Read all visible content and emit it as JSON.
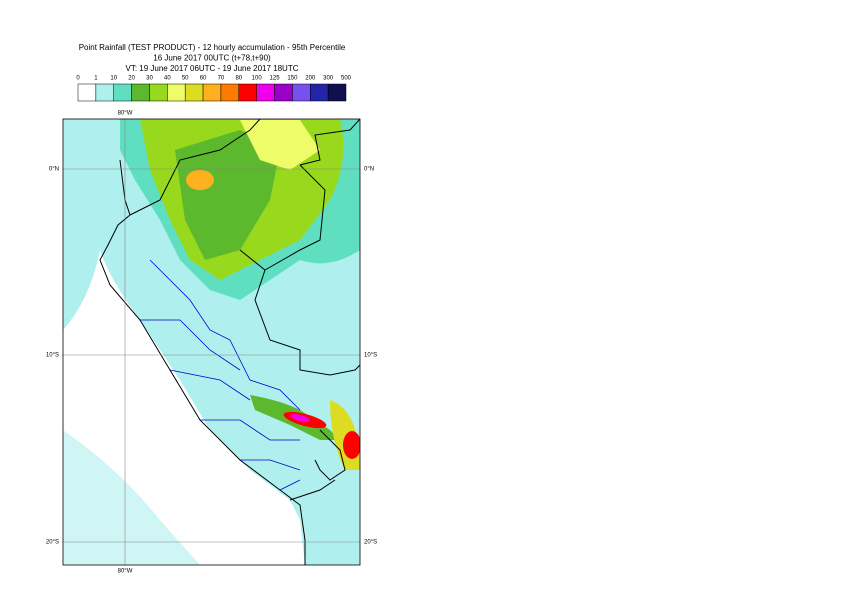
{
  "header": {
    "lines": [
      "Point Rainfall (TEST PRODUCT) - 12 hourly accumulation - 95th Percentile",
      "16 June 2017 00UTC (t+78,t+90)",
      "VT: 19 June 2017 06UTC - 19 June 2017 18UTC"
    ]
  },
  "legend": {
    "labels": [
      "0",
      "1",
      "10",
      "20",
      "30",
      "40",
      "50",
      "60",
      "70",
      "80",
      "100",
      "125",
      "150",
      "200",
      "300",
      "500"
    ],
    "colors": [
      "#ffffff",
      "#aff0ee",
      "#5fdfc0",
      "#5cb82c",
      "#98d91e",
      "#eefc6a",
      "#dcdc22",
      "#ffb01e",
      "#ff7a00",
      "#ff0000",
      "#ee00ee",
      "#9a00c8",
      "#7850f0",
      "#2424a8",
      "#10104e"
    ]
  },
  "map": {
    "lat_labels": [
      "0°N",
      "10°S",
      "20°S"
    ],
    "lon_labels": [
      "80°W"
    ]
  }
}
